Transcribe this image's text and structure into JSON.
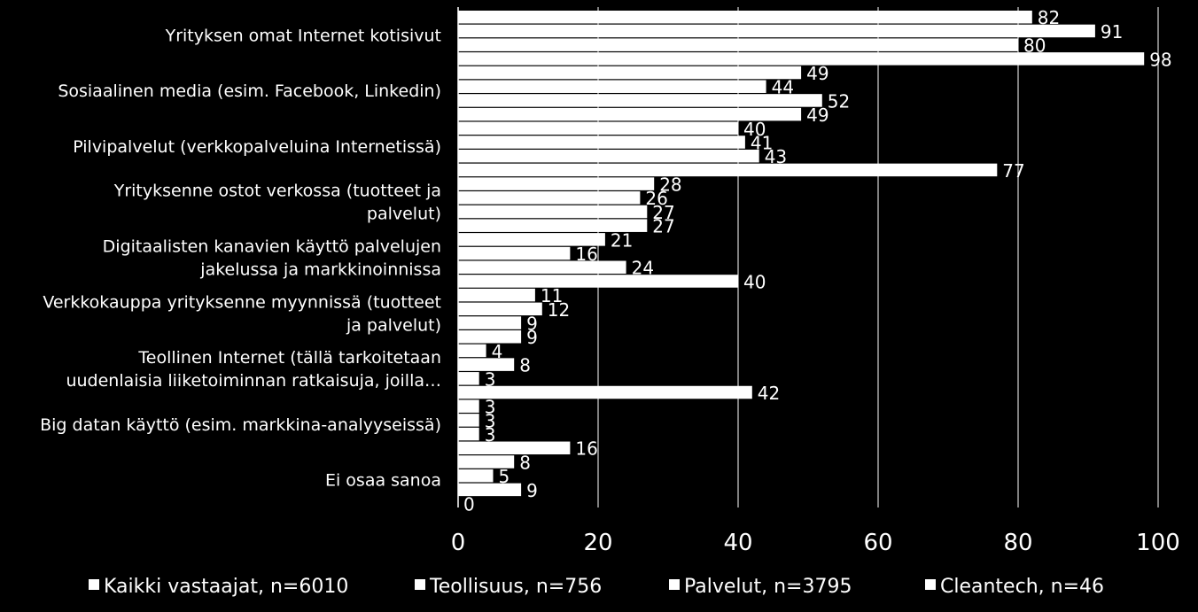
{
  "chart_data": {
    "type": "bar",
    "orientation": "horizontal",
    "categories": [
      [
        "Yrityksen omat Internet kotisivut"
      ],
      [
        "Sosiaalinen media (esim. Facebook, Linkedin)"
      ],
      [
        "Pilvipalvelut  (verkkopalveluina Internetissä)"
      ],
      [
        "Yrityksenne ostot verkossa (tuotteet ja",
        "palvelut)"
      ],
      [
        "Digitaalisten kanavien käyttö palvelujen",
        "jakelussa ja markkinoinnissa"
      ],
      [
        "Verkkokauppa yrityksenne myynnissä (tuotteet",
        "ja palvelut)"
      ],
      [
        "Teollinen Internet (tällä tarkoitetaan",
        "uudenlaisia liiketoiminnan ratkaisuja, joilla…"
      ],
      [
        "Big datan käyttö (esim. markkina-analyyseissä)"
      ],
      [
        "Ei osaa sanoa"
      ]
    ],
    "series": [
      {
        "name": "Kaikki vastaajat, n=6010",
        "values": [
          82,
          49,
          40,
          28,
          21,
          11,
          4,
          3,
          8
        ]
      },
      {
        "name": "Teollisuus, n=756",
        "values": [
          91,
          44,
          41,
          26,
          16,
          12,
          8,
          3,
          5
        ]
      },
      {
        "name": "Palvelut, n=3795",
        "values": [
          80,
          52,
          43,
          27,
          24,
          9,
          3,
          3,
          9
        ]
      },
      {
        "name": "Cleantech, n=46",
        "values": [
          98,
          49,
          77,
          27,
          40,
          9,
          42,
          16,
          0
        ]
      }
    ],
    "xlim": [
      0,
      100
    ],
    "xticks": [
      "0",
      "20",
      "40",
      "60",
      "80",
      "100"
    ],
    "grid": true,
    "legend_position": "bottom",
    "colors": {
      "background": "#000000",
      "bars": "#ffffff",
      "text": "#ffffff"
    }
  }
}
